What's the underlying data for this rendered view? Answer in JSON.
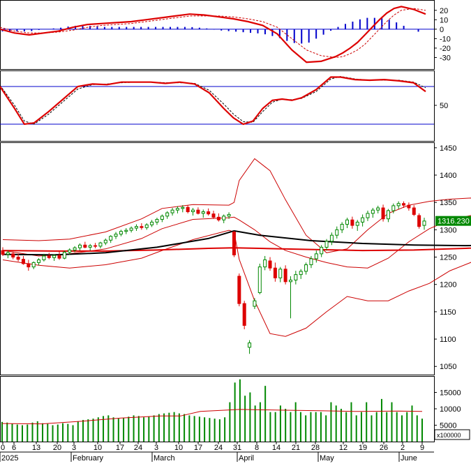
{
  "chart_data": [
    {
      "panel": "macd",
      "type": "line",
      "ylim": [
        -40,
        25
      ],
      "yticks": [
        -30,
        -20,
        -10,
        0,
        10,
        20
      ],
      "series": [
        {
          "role": "macd",
          "color": "#e00000",
          "x": [
            0,
            6,
            12,
            18,
            24,
            30,
            36,
            42,
            48,
            54,
            60,
            66,
            72,
            78,
            84,
            90,
            96,
            102,
            108,
            114,
            120,
            126,
            132,
            138,
            141,
            144,
            147,
            150,
            153,
            156,
            159,
            162,
            165,
            170,
            175
          ],
          "values": [
            0,
            -4,
            -6,
            -4,
            -2,
            2,
            5,
            6,
            7,
            8,
            10,
            12,
            14,
            16,
            15,
            13,
            11,
            8,
            4,
            -5,
            -22,
            -35,
            -34,
            -29,
            -25,
            -20,
            -14,
            -6,
            2,
            10,
            17,
            22,
            24,
            21,
            16
          ]
        },
        {
          "role": "signal",
          "color": "#e00000",
          "x": [
            0,
            6,
            12,
            18,
            24,
            30,
            36,
            42,
            48,
            54,
            60,
            66,
            72,
            78,
            84,
            90,
            96,
            102,
            108,
            114,
            120,
            126,
            132,
            138,
            141,
            144,
            147,
            150,
            153,
            156,
            159,
            162,
            165,
            170,
            175
          ],
          "values": [
            2,
            -2,
            -4,
            -4,
            -3,
            -1,
            2,
            4,
            5,
            6,
            8,
            10,
            12,
            14,
            14,
            14,
            13,
            11,
            8,
            2,
            -10,
            -22,
            -28,
            -30,
            -29,
            -26,
            -22,
            -16,
            -8,
            0,
            8,
            15,
            20,
            22,
            20
          ]
        }
      ]
    },
    {
      "panel": "stochastic",
      "type": "line",
      "ylim": [
        0,
        100
      ],
      "yticks": [
        50
      ],
      "bands": [
        80,
        20
      ],
      "series": [
        {
          "role": "k",
          "color": "#e00000",
          "x": [
            0,
            6,
            10,
            14,
            20,
            26,
            32,
            38,
            44,
            50,
            56,
            62,
            68,
            74,
            80,
            86,
            92,
            96,
            100,
            104,
            108,
            112,
            116,
            120,
            124,
            130,
            136,
            140,
            146,
            152,
            158,
            164,
            170,
            175
          ],
          "values": [
            80,
            45,
            20,
            22,
            40,
            60,
            80,
            84,
            83,
            87,
            87,
            87,
            85,
            87,
            84,
            70,
            45,
            30,
            20,
            25,
            45,
            58,
            60,
            58,
            62,
            75,
            95,
            95,
            91,
            90,
            91,
            89,
            86,
            72
          ]
        },
        {
          "role": "d",
          "color": "#000000",
          "x": [
            0,
            6,
            10,
            14,
            20,
            26,
            32,
            38,
            44,
            50,
            56,
            62,
            68,
            74,
            80,
            86,
            92,
            96,
            100,
            104,
            108,
            112,
            116,
            120,
            124,
            130,
            136,
            140,
            146,
            152,
            158,
            164,
            170,
            175
          ],
          "values": [
            82,
            50,
            25,
            20,
            36,
            56,
            76,
            83,
            84,
            86,
            87,
            87,
            86,
            86,
            85,
            74,
            52,
            36,
            24,
            23,
            40,
            55,
            60,
            59,
            61,
            72,
            92,
            96,
            92,
            90,
            90,
            90,
            87,
            78
          ]
        }
      ]
    },
    {
      "panel": "price",
      "type": "candlestick",
      "ylim": [
        1035,
        1460
      ],
      "yticks": [
        1050,
        1100,
        1150,
        1200,
        1250,
        1300,
        1350,
        1400,
        1450
      ],
      "last_price_label": "1316.230",
      "candles": [
        {
          "o": 1262,
          "h": 1268,
          "l": 1252,
          "c": 1255
        },
        {
          "o": 1255,
          "h": 1262,
          "l": 1248,
          "c": 1258
        },
        {
          "o": 1256,
          "h": 1260,
          "l": 1246,
          "c": 1250
        },
        {
          "o": 1250,
          "h": 1256,
          "l": 1242,
          "c": 1246
        },
        {
          "o": 1246,
          "h": 1252,
          "l": 1236,
          "c": 1238
        },
        {
          "o": 1238,
          "h": 1245,
          "l": 1225,
          "c": 1232
        },
        {
          "o": 1232,
          "h": 1242,
          "l": 1228,
          "c": 1240
        },
        {
          "o": 1240,
          "h": 1248,
          "l": 1235,
          "c": 1245
        },
        {
          "o": 1245,
          "h": 1256,
          "l": 1242,
          "c": 1252
        },
        {
          "o": 1252,
          "h": 1258,
          "l": 1246,
          "c": 1249
        },
        {
          "o": 1249,
          "h": 1255,
          "l": 1243,
          "c": 1253
        },
        {
          "o": 1253,
          "h": 1260,
          "l": 1245,
          "c": 1248
        },
        {
          "o": 1248,
          "h": 1262,
          "l": 1246,
          "c": 1259
        },
        {
          "o": 1259,
          "h": 1266,
          "l": 1254,
          "c": 1263
        },
        {
          "o": 1263,
          "h": 1270,
          "l": 1259,
          "c": 1267
        },
        {
          "o": 1267,
          "h": 1275,
          "l": 1262,
          "c": 1272
        },
        {
          "o": 1272,
          "h": 1278,
          "l": 1266,
          "c": 1268
        },
        {
          "o": 1268,
          "h": 1274,
          "l": 1262,
          "c": 1271
        },
        {
          "o": 1271,
          "h": 1276,
          "l": 1266,
          "c": 1270
        },
        {
          "o": 1270,
          "h": 1278,
          "l": 1266,
          "c": 1276
        },
        {
          "o": 1276,
          "h": 1284,
          "l": 1272,
          "c": 1281
        },
        {
          "o": 1281,
          "h": 1290,
          "l": 1276,
          "c": 1288
        },
        {
          "o": 1288,
          "h": 1296,
          "l": 1283,
          "c": 1292
        },
        {
          "o": 1292,
          "h": 1300,
          "l": 1288,
          "c": 1297
        },
        {
          "o": 1297,
          "h": 1303,
          "l": 1292,
          "c": 1299
        },
        {
          "o": 1299,
          "h": 1306,
          "l": 1295,
          "c": 1303
        },
        {
          "o": 1303,
          "h": 1310,
          "l": 1298,
          "c": 1306
        },
        {
          "o": 1306,
          "h": 1312,
          "l": 1300,
          "c": 1304
        },
        {
          "o": 1304,
          "h": 1312,
          "l": 1300,
          "c": 1309
        },
        {
          "o": 1309,
          "h": 1318,
          "l": 1305,
          "c": 1314
        },
        {
          "o": 1314,
          "h": 1322,
          "l": 1309,
          "c": 1319
        },
        {
          "o": 1319,
          "h": 1328,
          "l": 1314,
          "c": 1325
        },
        {
          "o": 1325,
          "h": 1334,
          "l": 1320,
          "c": 1331
        },
        {
          "o": 1331,
          "h": 1340,
          "l": 1326,
          "c": 1336
        },
        {
          "o": 1336,
          "h": 1343,
          "l": 1330,
          "c": 1339
        },
        {
          "o": 1339,
          "h": 1345,
          "l": 1332,
          "c": 1341
        },
        {
          "o": 1341,
          "h": 1345,
          "l": 1330,
          "c": 1333
        },
        {
          "o": 1333,
          "h": 1340,
          "l": 1326,
          "c": 1336
        },
        {
          "o": 1336,
          "h": 1341,
          "l": 1328,
          "c": 1330
        },
        {
          "o": 1330,
          "h": 1337,
          "l": 1322,
          "c": 1333
        },
        {
          "o": 1333,
          "h": 1339,
          "l": 1326,
          "c": 1329
        },
        {
          "o": 1329,
          "h": 1335,
          "l": 1320,
          "c": 1323
        },
        {
          "o": 1323,
          "h": 1330,
          "l": 1315,
          "c": 1318
        },
        {
          "o": 1318,
          "h": 1328,
          "l": 1312,
          "c": 1325
        },
        {
          "o": 1325,
          "h": 1332,
          "l": 1320,
          "c": 1328
        },
        {
          "o": 1296,
          "h": 1298,
          "l": 1250,
          "c": 1254
        },
        {
          "o": 1215,
          "h": 1220,
          "l": 1160,
          "c": 1165
        },
        {
          "o": 1165,
          "h": 1170,
          "l": 1118,
          "c": 1125
        },
        {
          "o": 1085,
          "h": 1098,
          "l": 1073,
          "c": 1093
        },
        {
          "o": 1160,
          "h": 1175,
          "l": 1155,
          "c": 1170
        },
        {
          "o": 1185,
          "h": 1238,
          "l": 1182,
          "c": 1232
        },
        {
          "o": 1232,
          "h": 1252,
          "l": 1226,
          "c": 1245
        },
        {
          "o": 1243,
          "h": 1250,
          "l": 1225,
          "c": 1230
        },
        {
          "o": 1230,
          "h": 1240,
          "l": 1205,
          "c": 1212
        },
        {
          "o": 1212,
          "h": 1232,
          "l": 1204,
          "c": 1228
        },
        {
          "o": 1228,
          "h": 1235,
          "l": 1200,
          "c": 1205
        },
        {
          "o": 1205,
          "h": 1215,
          "l": 1138,
          "c": 1208
        },
        {
          "o": 1208,
          "h": 1225,
          "l": 1200,
          "c": 1218
        },
        {
          "o": 1218,
          "h": 1228,
          "l": 1210,
          "c": 1224
        },
        {
          "o": 1224,
          "h": 1240,
          "l": 1218,
          "c": 1236
        },
        {
          "o": 1236,
          "h": 1252,
          "l": 1230,
          "c": 1247
        },
        {
          "o": 1247,
          "h": 1262,
          "l": 1240,
          "c": 1256
        },
        {
          "o": 1256,
          "h": 1272,
          "l": 1250,
          "c": 1268
        },
        {
          "o": 1268,
          "h": 1283,
          "l": 1262,
          "c": 1279
        },
        {
          "o": 1279,
          "h": 1295,
          "l": 1272,
          "c": 1290
        },
        {
          "o": 1290,
          "h": 1306,
          "l": 1284,
          "c": 1300
        },
        {
          "o": 1300,
          "h": 1314,
          "l": 1294,
          "c": 1310
        },
        {
          "o": 1310,
          "h": 1322,
          "l": 1303,
          "c": 1318
        },
        {
          "o": 1318,
          "h": 1324,
          "l": 1302,
          "c": 1308
        },
        {
          "o": 1308,
          "h": 1318,
          "l": 1298,
          "c": 1314
        },
        {
          "o": 1314,
          "h": 1328,
          "l": 1306,
          "c": 1322
        },
        {
          "o": 1322,
          "h": 1335,
          "l": 1316,
          "c": 1330
        },
        {
          "o": 1330,
          "h": 1340,
          "l": 1322,
          "c": 1336
        },
        {
          "o": 1336,
          "h": 1344,
          "l": 1330,
          "c": 1340
        },
        {
          "o": 1340,
          "h": 1346,
          "l": 1315,
          "c": 1320
        },
        {
          "o": 1320,
          "h": 1338,
          "l": 1314,
          "c": 1335
        },
        {
          "o": 1335,
          "h": 1348,
          "l": 1330,
          "c": 1344
        },
        {
          "o": 1344,
          "h": 1352,
          "l": 1338,
          "c": 1348
        },
        {
          "o": 1348,
          "h": 1352,
          "l": 1340,
          "c": 1345
        },
        {
          "o": 1345,
          "h": 1350,
          "l": 1335,
          "c": 1340
        },
        {
          "o": 1340,
          "h": 1345,
          "l": 1325,
          "c": 1328
        },
        {
          "o": 1326,
          "h": 1330,
          "l": 1302,
          "c": 1306
        },
        {
          "o": 1308,
          "h": 1322,
          "l": 1300,
          "c": 1316
        }
      ],
      "bollinger": {
        "x": [
          0,
          7,
          13,
          20,
          27,
          31,
          37,
          44,
          45,
          46,
          49,
          52,
          55,
          59,
          63,
          67,
          71,
          75,
          79,
          83,
          87,
          91,
          95,
          99,
          103,
          106
        ],
        "upper": [
          1282,
          1280,
          1283,
          1296,
          1320,
          1339,
          1346,
          1345,
          1350,
          1390,
          1430,
          1408,
          1355,
          1290,
          1258,
          1265,
          1300,
          1330,
          1345,
          1352,
          1356,
          1358,
          1356,
          1354,
          1356,
          1355
        ],
        "middle": [
          1262,
          1252,
          1256,
          1265,
          1284,
          1302,
          1319,
          1322,
          1323,
          1318,
          1300,
          1278,
          1262,
          1250,
          1240,
          1232,
          1230,
          1248,
          1278,
          1302,
          1318,
          1326,
          1332,
          1334,
          1336,
          1316
        ],
        "lower": [
          1245,
          1235,
          1230,
          1236,
          1248,
          1262,
          1282,
          1299,
          1296,
          1246,
          1170,
          1110,
          1105,
          1120,
          1150,
          1178,
          1170,
          1170,
          1188,
          1202,
          1225,
          1240,
          1262,
          1285,
          1300,
          1300
        ]
      },
      "ma_black": {
        "x": [
          0,
          10,
          20,
          30,
          40,
          45,
          50,
          60,
          70,
          80,
          90,
          100,
          106
        ],
        "values": [
          1255,
          1254,
          1258,
          1268,
          1284,
          1298,
          1290,
          1280,
          1275,
          1272,
          1271,
          1272,
          1272
        ]
      },
      "ma_red": {
        "x": [
          0,
          10,
          20,
          30,
          40,
          45,
          50,
          60,
          70,
          80,
          90,
          100,
          106
        ],
        "values": [
          1262,
          1261,
          1261,
          1263,
          1266,
          1267,
          1266,
          1264,
          1262,
          1263,
          1266,
          1270,
          1272
        ]
      }
    },
    {
      "panel": "volume",
      "type": "bar",
      "ylim": [
        0,
        20000
      ],
      "yticks": [
        5000,
        10000,
        15000
      ],
      "scale_label": "x100000",
      "values": [
        6000,
        5800,
        5500,
        5200,
        5000,
        5200,
        5800,
        6200,
        5600,
        5400,
        5000,
        5200,
        5600,
        5400,
        5000,
        6200,
        6600,
        6800,
        7000,
        7400,
        7800,
        8000,
        7400,
        7000,
        7200,
        7600,
        8000,
        7800,
        7400,
        7600,
        8000,
        8400,
        8600,
        8800,
        9000,
        8600,
        8400,
        8000,
        7800,
        7600,
        7400,
        7200,
        7000,
        6800,
        7400,
        12000,
        18000,
        19000,
        14000,
        15000,
        11000,
        12000,
        17000,
        9000,
        9000,
        11000,
        10000,
        9000,
        12000,
        9000,
        8000,
        9000,
        9000,
        9000,
        8000,
        12000,
        11000,
        10000,
        9000,
        12000,
        8000,
        9000,
        12000,
        8000,
        9000,
        13000,
        9000,
        12000,
        9000,
        8000,
        9000,
        11000,
        8000,
        7000
      ],
      "ma": {
        "x": [
          0,
          10,
          20,
          30,
          40,
          45,
          50,
          60,
          70,
          80,
          90,
          100,
          106
        ],
        "values": [
          5500,
          5400,
          6200,
          7200,
          7800,
          7800,
          9200,
          9800,
          9600,
          9400,
          9200,
          9300,
          9200
        ]
      }
    }
  ],
  "x_axis": {
    "day_labels": [
      "0",
      "6",
      "13",
      "20",
      "3",
      "10",
      "17",
      "24",
      "3",
      "10",
      "17",
      "24",
      "31",
      "8",
      "14",
      "21",
      "28",
      "12",
      "19",
      "26",
      "2",
      "9"
    ],
    "month_labels": [
      "2025",
      "February",
      "March",
      "April",
      "May",
      "June"
    ]
  }
}
